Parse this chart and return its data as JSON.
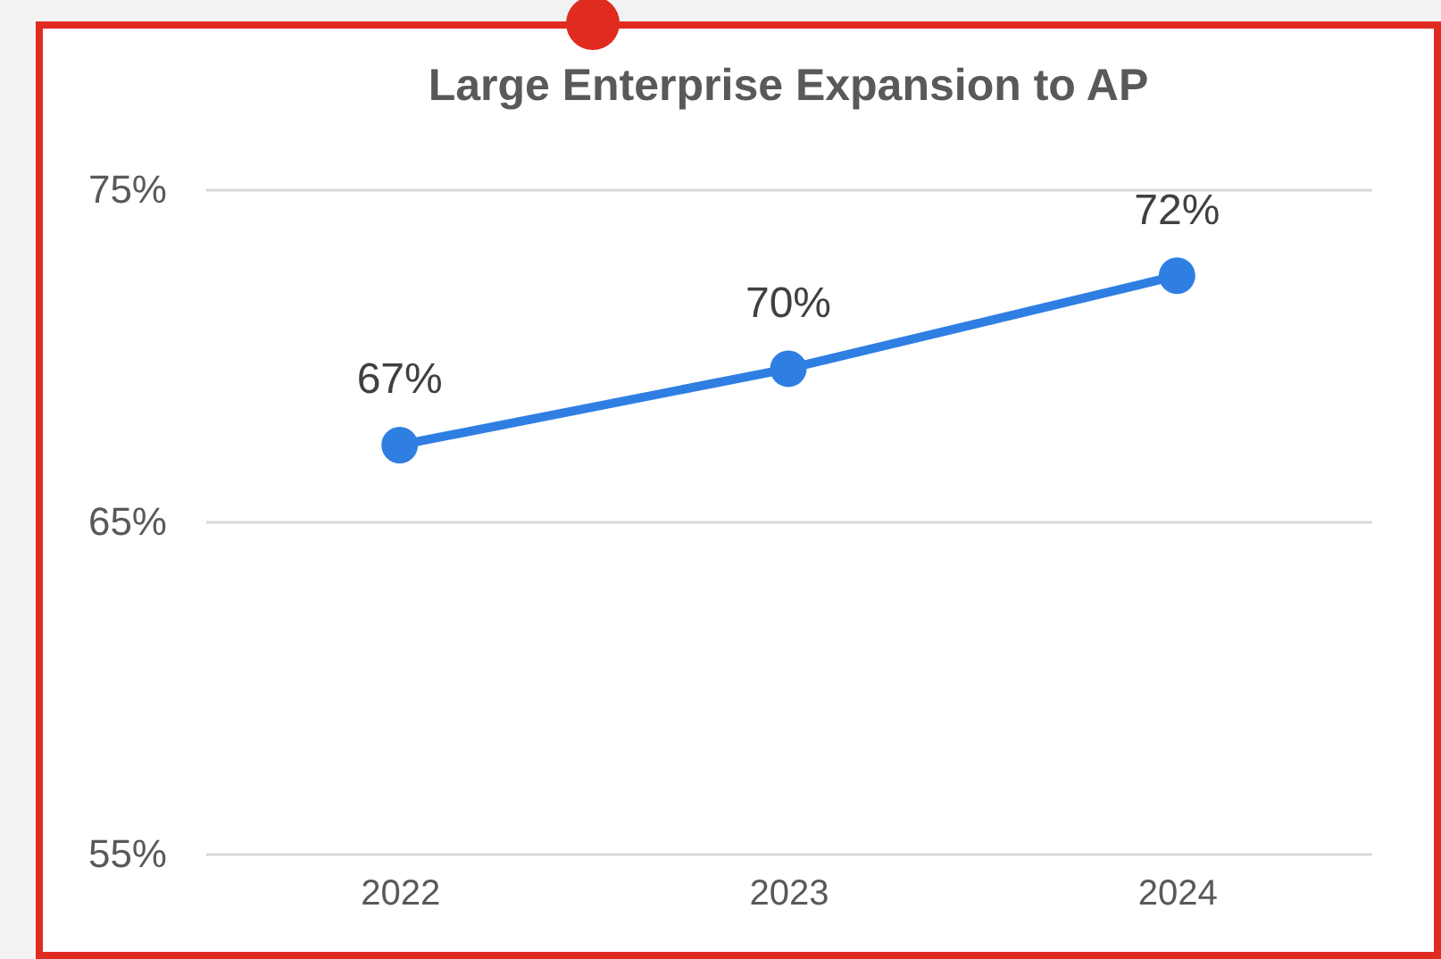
{
  "chart_data": {
    "type": "line",
    "title": "Large Enterprise Expansion to AP",
    "categories": [
      "2022",
      "2023",
      "2024"
    ],
    "series": [
      {
        "color": "#2f7fe3",
        "values": [
          67.3,
          69.6,
          72.4
        ],
        "value_labels": [
          "67%",
          "70%",
          "72%"
        ]
      }
    ],
    "ylim": [
      55,
      75
    ],
    "yticks": [
      {
        "value": 55,
        "label": "55%"
      },
      {
        "value": 65,
        "label": "65%"
      },
      {
        "value": 75,
        "label": "75%"
      }
    ],
    "grid": "y",
    "marker": "circle",
    "line_style": "solid"
  }
}
